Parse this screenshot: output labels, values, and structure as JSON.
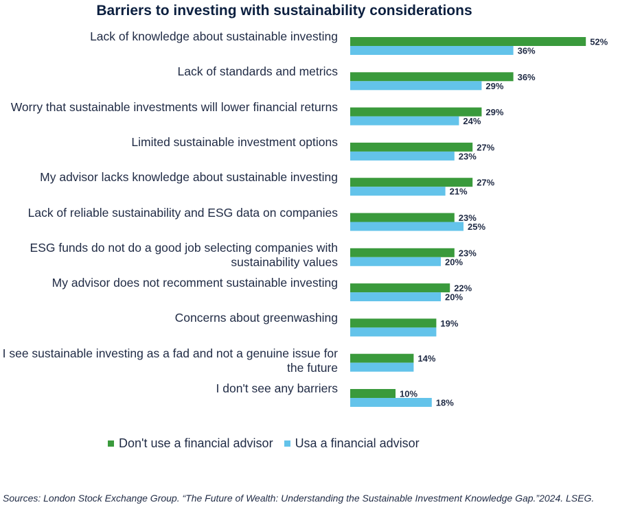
{
  "chart_data": {
    "type": "bar",
    "orientation": "horizontal",
    "title": "Barriers to investing with sustainability considerations",
    "xlabel": "",
    "ylabel": "",
    "xlim": [
      0,
      52
    ],
    "grid": false,
    "legend_position": "bottom",
    "categories": [
      "Lack of knowledge about sustainable investing",
      "Lack of standards and metrics",
      "Worry that sustainable investments will lower financial returns",
      "Limited sustainable investment options",
      "My advisor lacks knowledge about sustainable investing",
      "Lack of reliable sustainability and ESG data on companies",
      "ESG funds do not do a good job selecting companies with sustainability values",
      "My advisor does not recomment sustainable investing",
      "Concerns about greenwashing",
      "I see sustainable investing as a fad and not a genuine issue for the future",
      "I don't see any barriers"
    ],
    "series": [
      {
        "name": "Don't use a financial advisor",
        "color": "#3a9a3c",
        "values": [
          52,
          36,
          29,
          27,
          27,
          23,
          23,
          22,
          19,
          14,
          10
        ],
        "labels": [
          "52%",
          "36%",
          "29%",
          "27%",
          "27%",
          "23%",
          "23%",
          "22%",
          "19%",
          "14%",
          "10%"
        ]
      },
      {
        "name": "Usa a financial advisor",
        "color": "#63c3ea",
        "values": [
          36,
          29,
          24,
          23,
          21,
          25,
          20,
          20,
          19,
          14,
          18
        ],
        "labels": [
          "36%",
          "29%",
          "24%",
          "23%",
          "21%",
          "25%",
          "20%",
          "20%",
          "",
          "",
          "18%"
        ]
      }
    ]
  },
  "source": "Sources: London Stock Exchange Group. “The Future of Wealth: Understanding the Sustainable Investment Knowledge Gap.”2024. LSEG."
}
